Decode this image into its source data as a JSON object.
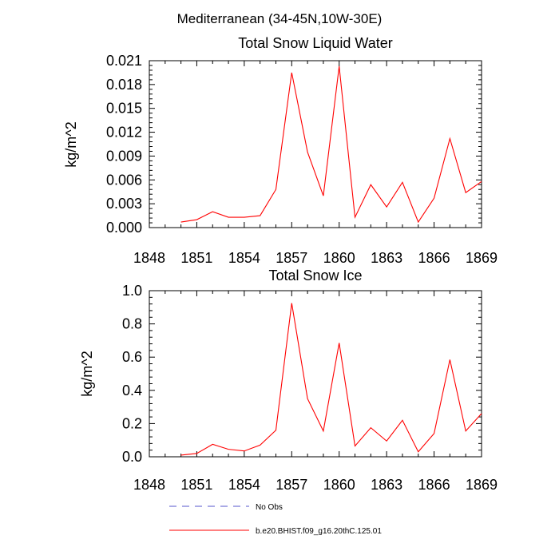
{
  "figure_title": "Mediterranean (34-45N,10W-30E)",
  "legend": [
    {
      "label": "No Obs",
      "color": "#5555cc",
      "dash": "dashed"
    },
    {
      "label": "b.e20.BHIST.f09_g16.20thC.125.01",
      "color": "#ff0000",
      "dash": "solid"
    }
  ],
  "chart_data": [
    {
      "type": "line",
      "title": "Total Snow Liquid Water",
      "ylabel": "kg/m^2",
      "xlabel": "",
      "xlim": [
        1848,
        1869
      ],
      "ylim": [
        0,
        0.021
      ],
      "xticks": [
        "1848",
        "1851",
        "1854",
        "1857",
        "1860",
        "1863",
        "1866",
        "1869"
      ],
      "yticks": [
        "0.000",
        "0.003",
        "0.006",
        "0.009",
        "0.012",
        "0.015",
        "0.018",
        "0.021"
      ],
      "x": [
        1850,
        1851,
        1852,
        1853,
        1854,
        1855,
        1856,
        1857,
        1858,
        1859,
        1860,
        1861,
        1862,
        1863,
        1864,
        1865,
        1866,
        1867,
        1868,
        1869
      ],
      "series": [
        {
          "name": "b.e20.BHIST.f09_g16.20thC.125.01",
          "color": "#ff0000",
          "values": [
            0.0007,
            0.001,
            0.002,
            0.0013,
            0.0013,
            0.0015,
            0.0048,
            0.0195,
            0.0095,
            0.004,
            0.0203,
            0.0013,
            0.0054,
            0.0026,
            0.0057,
            0.0007,
            0.0037,
            0.0112,
            0.0044,
            0.0058
          ]
        }
      ]
    },
    {
      "type": "line",
      "title": "Total Snow Ice",
      "ylabel": "kg/m^2",
      "xlabel": "",
      "xlim": [
        1848,
        1869
      ],
      "ylim": [
        0,
        1.0
      ],
      "xticks": [
        "1848",
        "1851",
        "1854",
        "1857",
        "1860",
        "1863",
        "1866",
        "1869"
      ],
      "yticks": [
        "0.0",
        "0.2",
        "0.4",
        "0.6",
        "0.8",
        "1.0"
      ],
      "x": [
        1850,
        1851,
        1852,
        1853,
        1854,
        1855,
        1856,
        1857,
        1858,
        1859,
        1860,
        1861,
        1862,
        1863,
        1864,
        1865,
        1866,
        1867,
        1868,
        1869
      ],
      "series": [
        {
          "name": "b.e20.BHIST.f09_g16.20thC.125.01",
          "color": "#ff0000",
          "values": [
            0.01,
            0.02,
            0.075,
            0.045,
            0.035,
            0.07,
            0.16,
            0.925,
            0.35,
            0.155,
            0.685,
            0.065,
            0.175,
            0.095,
            0.22,
            0.03,
            0.14,
            0.585,
            0.155,
            0.26
          ]
        }
      ]
    }
  ]
}
